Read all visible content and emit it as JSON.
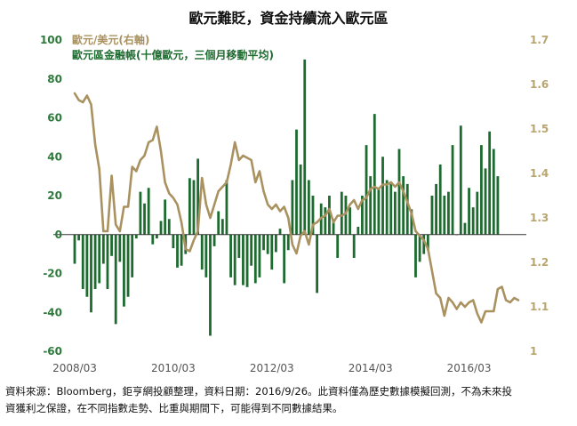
{
  "chart_data": {
    "type": "bar+line",
    "title": "歐元難貶，資金持續流入歐元區",
    "x_tick_labels": [
      "2008/03",
      "2010/03",
      "2012/03",
      "2014/03",
      "2016/03"
    ],
    "months_start": "2008/03",
    "months_end": "2016/09",
    "y_left": {
      "lim": [
        -60,
        100
      ],
      "ticks": [
        -60,
        -40,
        -20,
        0,
        20,
        40,
        60,
        80,
        100
      ]
    },
    "y_right": {
      "lim": [
        1.0,
        1.7
      ],
      "ticks": [
        "1",
        "1.1",
        "1.2",
        "1.3",
        "1.4",
        "1.5",
        "1.6",
        "1.7"
      ]
    },
    "series": [
      {
        "name": "歐元區金融帳(十億歐元，三個月移動平均)",
        "kind": "bar",
        "axis": "left",
        "color": "#1e6b30",
        "values": [
          -15,
          -3,
          -28,
          -32,
          -40,
          -28,
          -25,
          -15,
          -28,
          -11,
          -46,
          -14,
          -37,
          -32,
          -22,
          -2,
          22,
          16,
          24,
          -5,
          -2,
          7,
          18,
          8,
          -7,
          -17,
          -16,
          -10,
          29,
          28,
          39,
          -18,
          -22,
          -52,
          -6,
          12,
          8,
          28,
          -22,
          -26,
          -12,
          -26,
          -27,
          -16,
          -25,
          -22,
          -8,
          -10,
          -18,
          -9,
          3,
          -25,
          -8,
          28,
          54,
          36,
          90,
          28,
          20,
          -30,
          16,
          14,
          20,
          8,
          -12,
          22,
          20,
          14,
          -12,
          4,
          20,
          46,
          30,
          62,
          24,
          40,
          28,
          26,
          22,
          44,
          30,
          26,
          13,
          -22,
          -14,
          -10,
          -8,
          20,
          26,
          36,
          20,
          22,
          46,
          0,
          56,
          6,
          24,
          14,
          22,
          46,
          34,
          53,
          44,
          30
        ]
      },
      {
        "name": "歐元/美元(右軸)",
        "kind": "line",
        "axis": "right",
        "color": "#a99260",
        "values": [
          1.58,
          1.565,
          1.56,
          1.575,
          1.555,
          1.465,
          1.41,
          1.27,
          1.27,
          1.395,
          1.285,
          1.27,
          1.325,
          1.325,
          1.415,
          1.405,
          1.43,
          1.44,
          1.47,
          1.475,
          1.505,
          1.45,
          1.38,
          1.355,
          1.345,
          1.33,
          1.29,
          1.23,
          1.225,
          1.25,
          1.27,
          1.39,
          1.33,
          1.3,
          1.33,
          1.36,
          1.37,
          1.38,
          1.42,
          1.47,
          1.43,
          1.44,
          1.435,
          1.43,
          1.38,
          1.405,
          1.36,
          1.33,
          1.32,
          1.33,
          1.315,
          1.325,
          1.3,
          1.24,
          1.22,
          1.26,
          1.27,
          1.24,
          1.285,
          1.29,
          1.3,
          1.305,
          1.32,
          1.29,
          1.305,
          1.305,
          1.31,
          1.33,
          1.34,
          1.32,
          1.34,
          1.345,
          1.365,
          1.37,
          1.365,
          1.375,
          1.375,
          1.38,
          1.37,
          1.38,
          1.36,
          1.335,
          1.31,
          1.27,
          1.26,
          1.25,
          1.23,
          1.18,
          1.13,
          1.12,
          1.08,
          1.12,
          1.11,
          1.095,
          1.11,
          1.1,
          1.11,
          1.115,
          1.085,
          1.065,
          1.09,
          1.09,
          1.09,
          1.14,
          1.145,
          1.115,
          1.11,
          1.12,
          1.115
        ]
      }
    ],
    "grid": false,
    "legend_position": "top-left"
  },
  "legend": {
    "line_label": "歐元/美元(右軸)",
    "bar_label": "歐元區金融帳(十億歐元，三個月移動平均)"
  },
  "footnote": {
    "line1": "資料來源：Bloomberg，鉅亨網投顧整理，資料日期：2016/9/26。此資料僅為歷史數據模擬回測，不為未來投",
    "line2": "資獲利之保證，在不同指數走勢、比重與期間下，可能得到不同數據結果。"
  },
  "colors": {
    "left_axis": "#2e7a3c",
    "right_axis": "#b8a56f",
    "baseline": "#333333"
  }
}
